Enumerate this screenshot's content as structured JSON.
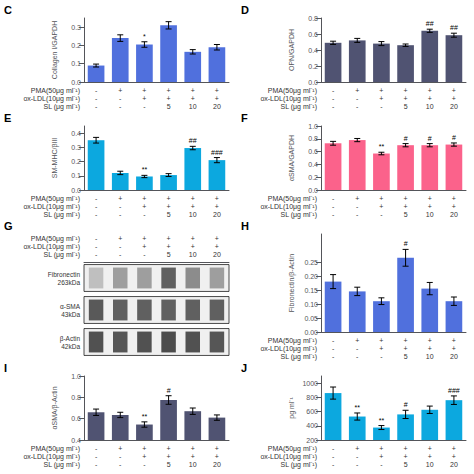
{
  "chart_data": [
    {
      "type": "bar",
      "title": "C",
      "y_label": "Collagen I/GAPDH",
      "values": [
        0.09,
        0.24,
        0.205,
        0.31,
        0.165,
        0.19
      ],
      "errors": [
        0.008,
        0.018,
        0.015,
        0.02,
        0.012,
        0.015
      ],
      "annotations": [
        null,
        null,
        "*",
        null,
        null,
        null
      ],
      "ylim": [
        0.0,
        0.35
      ],
      "yticks": [
        {
          "value": 0.0,
          "label": "0.0"
        },
        0.1,
        0.2,
        0.3
      ],
      "grid": false,
      "conditions": [
        {
          "label": "PMA(50μg ml⁻¹)",
          "values": [
            "-",
            "+",
            "+",
            "+",
            "+",
            "+"
          ]
        },
        {
          "label": "ox-LDL(10μg ml⁻¹)",
          "values": [
            "-",
            "-",
            "+",
            "+",
            "+",
            "+"
          ]
        },
        {
          "label": "SL (μg ml⁻¹)",
          "values": [
            "-",
            "-",
            "-",
            "5",
            "10",
            "20"
          ]
        }
      ]
    },
    {
      "type": "bar",
      "title": "D",
      "y_label": "OPN/GAPDH",
      "values": [
        0.49,
        0.52,
        0.48,
        0.46,
        0.64,
        0.585
      ],
      "errors": [
        0.02,
        0.025,
        0.025,
        0.015,
        0.02,
        0.025
      ],
      "annotations": [
        null,
        null,
        null,
        null,
        "##",
        "##"
      ],
      "ylim": [
        0.0,
        0.8
      ],
      "yticks": [
        {
          "value": 0.0,
          "label": "0.0"
        },
        0.2,
        0.4,
        0.6,
        0.8
      ],
      "grid": false,
      "conditions": [
        {
          "label": "PMA(50μg ml⁻¹)",
          "values": [
            "-",
            "+",
            "+",
            "+",
            "+",
            "+"
          ]
        },
        {
          "label": "ox-LDL(10μg ml⁻¹)",
          "values": [
            "-",
            "-",
            "+",
            "+",
            "+",
            "+"
          ]
        },
        {
          "label": "SL (μg ml⁻¹)",
          "values": [
            "-",
            "-",
            "-",
            "5",
            "10",
            "20"
          ]
        }
      ]
    },
    {
      "type": "bar",
      "title": "E",
      "y_label": "SM-MHC/βIII",
      "values": [
        0.35,
        0.12,
        0.095,
        0.105,
        0.295,
        0.21
      ],
      "errors": [
        0.02,
        0.012,
        0.008,
        0.01,
        0.012,
        0.018
      ],
      "annotations": [
        null,
        null,
        "**",
        null,
        "##",
        "###"
      ],
      "ylim": [
        0.0,
        0.45
      ],
      "yticks": [
        {
          "value": 0.0,
          "label": "0.0"
        },
        0.1,
        0.2,
        0.3,
        0.4
      ],
      "grid": false,
      "conditions": [
        {
          "label": "PMA(50μg ml⁻¹)",
          "values": [
            "-",
            "+",
            "+",
            "+",
            "+",
            "+"
          ]
        },
        {
          "label": "ox-LDL(10μg ml⁻¹)",
          "values": [
            "-",
            "-",
            "+",
            "+",
            "+",
            "+"
          ]
        },
        {
          "label": "SL (μg ml⁻¹)",
          "values": [
            "-",
            "-",
            "-",
            "5",
            "10",
            "20"
          ]
        }
      ]
    },
    {
      "type": "bar",
      "title": "F",
      "y_label": "αSMA/GAPDH",
      "values": [
        0.73,
        0.78,
        0.57,
        0.7,
        0.7,
        0.71
      ],
      "errors": [
        0.03,
        0.025,
        0.02,
        0.025,
        0.025,
        0.025
      ],
      "annotations": [
        null,
        null,
        "**",
        "#",
        "#",
        "#"
      ],
      "ylim": [
        0.0,
        1.0
      ],
      "yticks": [
        {
          "value": 0.0,
          "label": "0.0"
        },
        0.2,
        0.4,
        0.6,
        0.8,
        {
          "value": 1.0,
          "label": "1.0"
        }
      ],
      "grid": false,
      "conditions": [
        {
          "label": "PMA(50μg ml⁻¹)",
          "values": [
            "-",
            "+",
            "+",
            "+",
            "+",
            "+"
          ]
        },
        {
          "label": "ox-LDL(10μg ml⁻¹)",
          "values": [
            "-",
            "-",
            "+",
            "+",
            "+",
            "+"
          ]
        },
        {
          "label": "SL (μg ml⁻¹)",
          "values": [
            "-",
            "-",
            "-",
            "5",
            "10",
            "20"
          ]
        }
      ]
    },
    {
      "type": "heatmap",
      "title": "G",
      "conditions": [
        {
          "label": "PMA(50μg ml⁻¹)",
          "values": [
            "-",
            "+",
            "+",
            "+",
            "+",
            "+"
          ]
        },
        {
          "label": "ox-LDL(10μg ml⁻¹)",
          "values": [
            "-",
            "-",
            "+",
            "+",
            "+",
            "+"
          ]
        },
        {
          "label": "SL (μg ml⁻¹)",
          "values": [
            "-",
            "-",
            "-",
            "5",
            "10",
            "20"
          ]
        }
      ],
      "rows": [
        {
          "label": "Fibronectin\n263kDa",
          "values": [
            0.25,
            0.38,
            0.38,
            0.62,
            0.45,
            0.38
          ]
        },
        {
          "label": "α-SMA\n43kDa",
          "values": [
            0.65,
            0.62,
            0.62,
            0.62,
            0.62,
            0.62
          ]
        },
        {
          "label": "β-Actin\n42kDa",
          "values": [
            0.68,
            0.66,
            0.68,
            0.7,
            0.68,
            0.66
          ]
        }
      ]
    },
    {
      "type": "bar",
      "title": "H",
      "y_label": "Fibronectin/β-Actin",
      "values": [
        0.18,
        0.145,
        0.11,
        0.265,
        0.155,
        0.11
      ],
      "errors": [
        0.025,
        0.015,
        0.012,
        0.03,
        0.022,
        0.015
      ],
      "annotations": [
        null,
        null,
        null,
        "#",
        null,
        null
      ],
      "ylim": [
        0.0,
        0.35
      ],
      "yticks": [
        {
          "value": 0.0,
          "label": "0.00"
        },
        0.05,
        {
          "value": 0.1,
          "label": "0.10"
        },
        0.15,
        {
          "value": 0.2,
          "label": "0.20"
        },
        0.25
      ],
      "grid": false,
      "conditions": [
        {
          "label": "PMA(50μg ml⁻¹)",
          "values": [
            "-",
            "+",
            "+",
            "+",
            "+",
            "+"
          ]
        },
        {
          "label": "ox-LDL(10μg ml⁻¹)",
          "values": [
            "-",
            "-",
            "+",
            "+",
            "+",
            "+"
          ]
        },
        {
          "label": "SL (μg ml⁻¹)",
          "values": [
            "-",
            "-",
            "-",
            "5",
            "10",
            "20"
          ]
        }
      ]
    },
    {
      "type": "bar",
      "title": "I",
      "y_label": "αSMA/β-Actin",
      "values": [
        0.66,
        0.635,
        0.545,
        0.775,
        0.67,
        0.61
      ],
      "errors": [
        0.03,
        0.025,
        0.025,
        0.04,
        0.03,
        0.025
      ],
      "annotations": [
        null,
        null,
        "**",
        "#",
        null,
        null
      ],
      "ylim": [
        0.4,
        1.0
      ],
      "yticks": [
        0.4,
        0.6,
        0.8,
        {
          "value": 1.0,
          "label": "1.0"
        }
      ],
      "grid": false,
      "conditions": [
        {
          "label": "PMA(50μg ml⁻¹)",
          "values": [
            "-",
            "+",
            "+",
            "+",
            "+",
            "+"
          ]
        },
        {
          "label": "ox-LDL(10μg ml⁻¹)",
          "values": [
            "-",
            "-",
            "+",
            "+",
            "+",
            "+"
          ]
        },
        {
          "label": "SL (μg ml⁻¹)",
          "values": [
            "-",
            "-",
            "-",
            "5",
            "10",
            "20"
          ]
        }
      ]
    },
    {
      "type": "bar",
      "title": "J",
      "y_label": "pg ml⁻¹",
      "values": [
        860,
        530,
        375,
        560,
        625,
        760
      ],
      "errors": [
        85,
        50,
        28,
        58,
        52,
        60
      ],
      "annotations": [
        null,
        "**",
        "**",
        "#",
        null,
        "###"
      ],
      "ylim": [
        200,
        1100
      ],
      "yticks": [
        200,
        400,
        600,
        800,
        1000
      ],
      "grid": false,
      "conditions": [
        {
          "label": "PMA(50μg ml⁻¹)",
          "values": [
            "-",
            "+",
            "+",
            "+",
            "+",
            "+"
          ]
        },
        {
          "label": "ox-LDL(10μg ml⁻¹)",
          "values": [
            "-",
            "-",
            "+",
            "+",
            "+",
            "+"
          ]
        },
        {
          "label": "SL (μg ml⁻¹)",
          "values": [
            "-",
            "-",
            "-",
            "5",
            "10",
            "20"
          ]
        }
      ]
    }
  ]
}
